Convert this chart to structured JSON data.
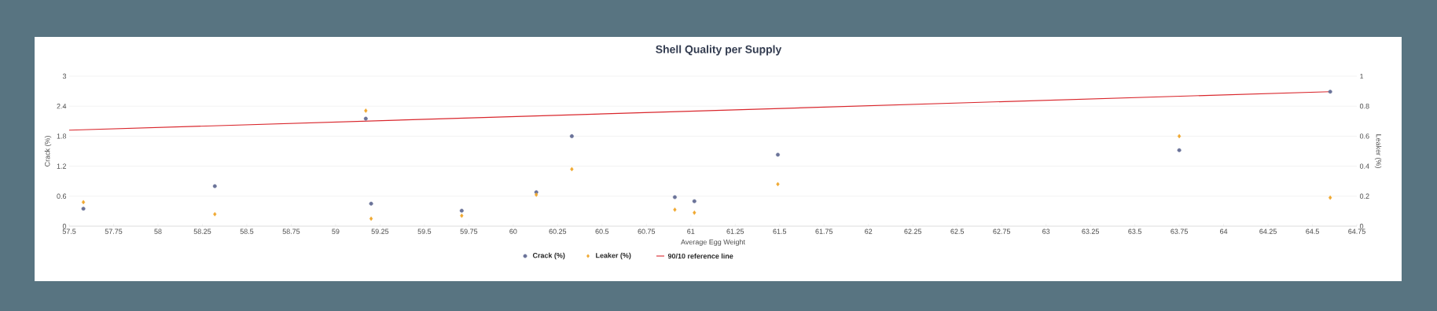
{
  "chart_data": {
    "type": "scatter",
    "title": "Shell Quality per Supply",
    "xlabel": "Average Egg Weight",
    "ylabel": "Crack (%)",
    "y2label": "Leaker (%)",
    "xlim": [
      57.5,
      64.75
    ],
    "xticks": [
      57.5,
      57.75,
      58,
      58.25,
      58.5,
      58.75,
      59,
      59.25,
      59.5,
      59.75,
      60,
      60.25,
      60.5,
      60.75,
      61,
      61.25,
      61.5,
      61.75,
      62,
      62.25,
      62.5,
      62.75,
      63,
      63.25,
      63.5,
      63.75,
      64,
      64.25,
      64.5,
      64.75
    ],
    "ylim": [
      0,
      3
    ],
    "yticks": [
      0,
      0.6,
      1.2,
      1.8,
      2.4,
      3
    ],
    "y2lim": [
      0,
      1
    ],
    "y2ticks": [
      0,
      0.2,
      0.4,
      0.6,
      0.8,
      1
    ],
    "grid": "y",
    "legend": "bottom",
    "series": [
      {
        "name": "Crack (%)",
        "marker": "circle",
        "color": "#6b7399",
        "x": [
          57.58,
          58.32,
          59.17,
          59.2,
          59.71,
          60.13,
          60.33,
          60.91,
          61.02,
          61.49,
          63.75,
          64.6
        ],
        "values": [
          0.35,
          0.8,
          2.15,
          0.45,
          0.31,
          0.68,
          1.8,
          0.58,
          0.5,
          1.43,
          1.52,
          2.69
        ]
      },
      {
        "name": "Leaker (%)",
        "marker": "diamond",
        "axis": "y2",
        "color": "#f0a830",
        "x": [
          57.58,
          58.32,
          59.17,
          59.2,
          59.71,
          60.13,
          60.33,
          60.91,
          61.02,
          61.49,
          63.75,
          64.6
        ],
        "values": [
          0.16,
          0.08,
          0.77,
          0.05,
          0.07,
          0.21,
          0.38,
          0.11,
          0.09,
          0.28,
          0.6,
          0.19
        ]
      },
      {
        "name": "90/10 reference line",
        "type": "line",
        "marker": "none",
        "line_style": "solid",
        "color": "#d9262c",
        "x": [
          57.5,
          64.6
        ],
        "values": [
          1.92,
          2.69
        ]
      }
    ]
  }
}
